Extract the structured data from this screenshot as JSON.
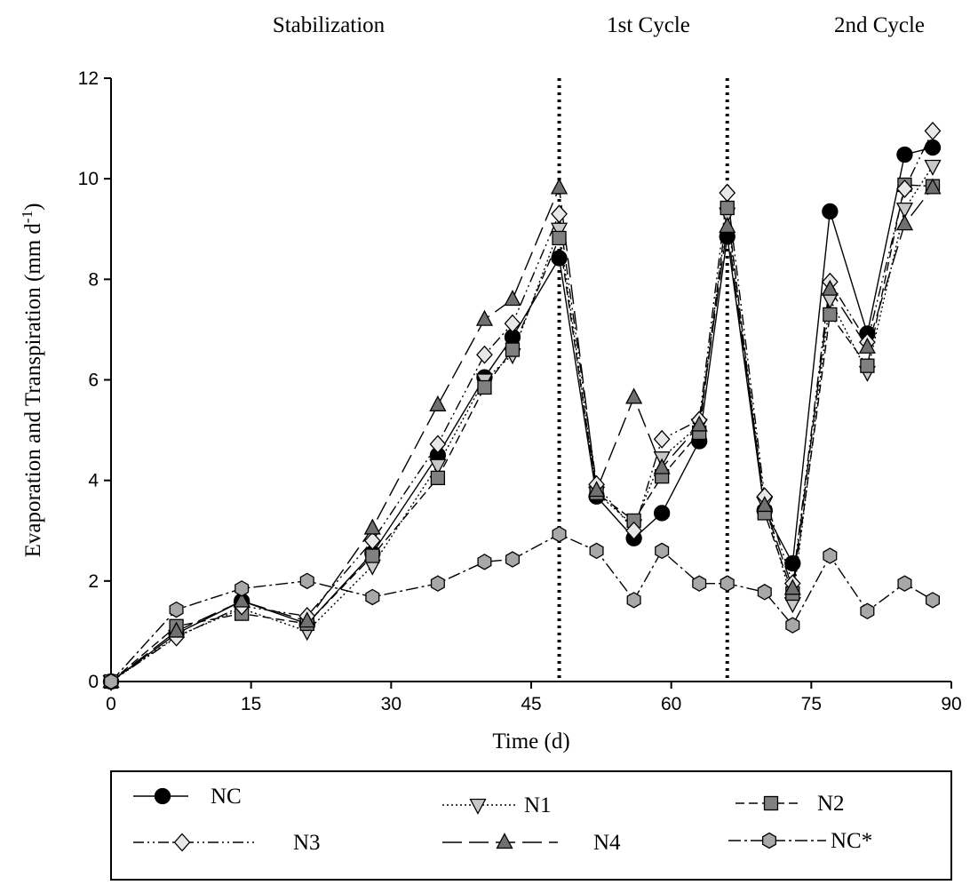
{
  "chart_data": {
    "type": "line",
    "section_labels": [
      "Stabilization",
      "1st Cycle",
      "2nd Cycle"
    ],
    "ylabel": {
      "text": "Evaporation and Transpiration  (mm d",
      "superscript": "-1",
      "close": ")"
    },
    "xlabel": "Time (d)",
    "x": [
      0,
      7,
      14,
      21,
      28,
      35,
      40,
      43,
      48,
      52,
      56,
      59,
      63,
      66,
      70,
      73,
      77,
      81,
      85,
      88
    ],
    "xlim": [
      0,
      90
    ],
    "xticks": [
      0,
      15,
      30,
      45,
      60,
      75,
      90
    ],
    "ylim": [
      0,
      12
    ],
    "yticks": [
      0,
      2,
      4,
      6,
      8,
      10,
      12
    ],
    "vlines": [
      48,
      66
    ],
    "legend": "bottom",
    "series": [
      {
        "name": "NC",
        "color": "#000000",
        "marker": "circle",
        "dash": "solid",
        "values": [
          0,
          0.95,
          1.6,
          1.15,
          2.55,
          4.5,
          6.05,
          6.85,
          8.42,
          3.68,
          2.85,
          3.35,
          4.78,
          8.85,
          3.4,
          2.35,
          9.35,
          6.92,
          10.48,
          10.62
        ]
      },
      {
        "name": "N1",
        "color": "#c8c8c8",
        "marker": "triangle-down",
        "dash": "dotted",
        "values": [
          0,
          0.9,
          1.45,
          1.0,
          2.3,
          4.3,
          6.0,
          6.5,
          9.0,
          3.75,
          3.1,
          4.45,
          5.1,
          9.3,
          3.55,
          1.55,
          7.6,
          6.15,
          9.4,
          10.25
        ]
      },
      {
        "name": "N2",
        "color": "#808080",
        "marker": "square",
        "dash": "dashed",
        "values": [
          0,
          1.1,
          1.35,
          1.15,
          2.5,
          4.05,
          5.85,
          6.6,
          8.82,
          3.75,
          3.2,
          4.08,
          4.95,
          9.42,
          3.35,
          1.75,
          7.3,
          6.28,
          9.88,
          9.85
        ]
      },
      {
        "name": "N3",
        "color": "#e8e8e8",
        "marker": "diamond",
        "dash": "dash-dot-dot",
        "values": [
          0,
          0.88,
          1.5,
          1.3,
          2.8,
          4.72,
          6.5,
          7.12,
          9.3,
          3.92,
          3.0,
          4.82,
          5.2,
          9.72,
          3.68,
          1.95,
          7.95,
          6.75,
          9.8,
          10.95
        ]
      },
      {
        "name": "N4",
        "color": "#707070",
        "marker": "triangle-up",
        "dash": "long-dash",
        "values": [
          0,
          1.0,
          1.6,
          1.2,
          3.05,
          5.5,
          7.2,
          7.6,
          9.82,
          3.8,
          5.65,
          4.25,
          5.1,
          9.05,
          3.5,
          1.85,
          7.8,
          6.65,
          9.1,
          9.82
        ]
      },
      {
        "name": "NC*",
        "color": "#a8a8a8",
        "marker": "hexagon",
        "dash": "dash-dot",
        "values": [
          0,
          1.43,
          1.85,
          2.0,
          1.68,
          1.95,
          2.38,
          2.43,
          2.93,
          2.6,
          1.62,
          2.6,
          1.95,
          1.95,
          1.78,
          1.12,
          2.5,
          1.4,
          1.95,
          1.62
        ]
      }
    ]
  }
}
